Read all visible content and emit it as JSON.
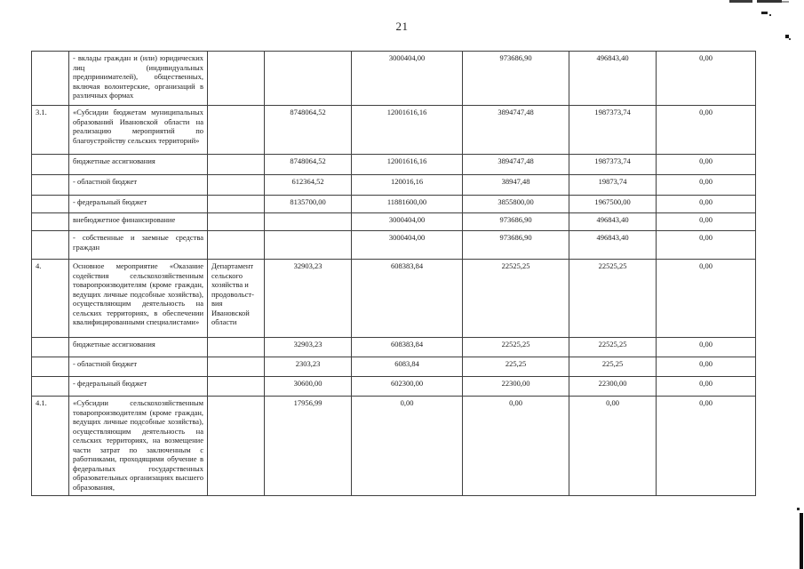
{
  "page": {
    "number": "21"
  },
  "table": {
    "rows": [
      {
        "num": "",
        "name": "- вклады граждан и (или) юридических лиц (индивидуальных предпринимателей), общественных, включая волонтерские, организаций в различных формах",
        "dept": "",
        "values": [
          "",
          "3000404,00",
          "973686,90",
          "496843,40",
          "0,00"
        ]
      },
      {
        "num": "3.1.",
        "name": "«Субсидии бюджетам муниципальных образований Ивановской области на реализацию мероприятий по благоустройству сельских территорий»",
        "dept": "",
        "values": [
          "8748064,52",
          "12001616,16",
          "3894747,48",
          "1987373,74",
          "0,00"
        ]
      },
      {
        "num": "",
        "name": "бюджетные ассигнования",
        "dept": "",
        "values": [
          "8748064,52",
          "12001616,16",
          "3894747,48",
          "1987373,74",
          "0,00"
        ]
      },
      {
        "num": "",
        "name": "- областной бюджет",
        "dept": "",
        "values": [
          "612364,52",
          "120016,16",
          "38947,48",
          "19873,74",
          "0,00"
        ]
      },
      {
        "num": "",
        "name": "- федеральный бюджет",
        "dept": "",
        "values": [
          "8135700,00",
          "11881600,00",
          "3855800,00",
          "1967500,00",
          "0,00"
        ]
      },
      {
        "num": "",
        "name": "внебюджетное финансирование",
        "dept": "",
        "values": [
          "",
          "3000404,00",
          "973686,90",
          "496843,40",
          "0,00"
        ]
      },
      {
        "num": "",
        "name": "- собственные и заемные средства граждан",
        "dept": "",
        "values": [
          "",
          "3000404,00",
          "973686,90",
          "496843,40",
          "0,00"
        ]
      },
      {
        "num": "4.",
        "name": "Основное мероприятие «Оказание содействия сельскохозяйственным товаропроизводителям (кроме граждан, ведущих личные подсобные хозяйства), осуществляющим деятельность на сельских территориях, в обеспечении квалифицированными специалистами»",
        "dept": "Департамент сельского хозяйства и продовольст-вия Ивановской области",
        "values": [
          "32903,23",
          "608383,84",
          "22525,25",
          "22525,25",
          "0,00"
        ]
      },
      {
        "num": "",
        "name": "бюджетные ассигнования",
        "dept": "",
        "values": [
          "32903,23",
          "608383,84",
          "22525,25",
          "22525,25",
          "0,00"
        ]
      },
      {
        "num": "",
        "name": "- областной бюджет",
        "dept": "",
        "values": [
          "2303,23",
          "6083,84",
          "225,25",
          "225,25",
          "0,00"
        ]
      },
      {
        "num": "",
        "name": "- федеральный бюджет",
        "dept": "",
        "values": [
          "30600,00",
          "602300,00",
          "22300,00",
          "22300,00",
          "0,00"
        ]
      },
      {
        "num": "4.1.",
        "name": "«Субсидии сельскохозяйственным товаропроизводителям (кроме граждан, ведущих личные подсобные хозяйства), осуществляющим деятельность на сельских территориях, на возмещение части затрат по заключенным с работниками, проходящими обучение в федеральных государственных образовательных организациях высшего образования,",
        "dept": "",
        "values": [
          "17956,99",
          "0,00",
          "0,00",
          "0,00",
          "0,00"
        ]
      }
    ]
  }
}
